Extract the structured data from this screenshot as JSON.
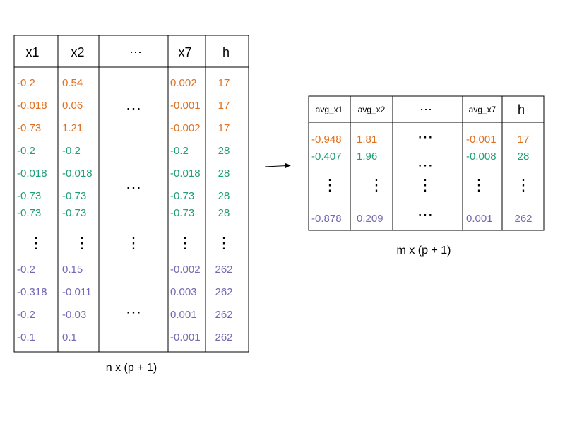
{
  "left_table": {
    "columns": [
      {
        "header": "x1",
        "cells": [
          "-0.2",
          "-0.018",
          "-0.73",
          "-0.2",
          "-0.018",
          "-0.73",
          "-0.73",
          "⋮",
          "-0.2",
          "-0.318",
          "-0.2",
          "-0.1"
        ]
      },
      {
        "header": "x2",
        "cells": [
          "0.54",
          "0.06",
          "1.21",
          "-0.2",
          "-0.018",
          "-0.73",
          "-0.73",
          "⋮",
          "0.15",
          "-0.011",
          "-0.03",
          "0.1"
        ]
      },
      {
        "header": "⋯",
        "cells": [
          "⋯",
          "⋯",
          "⋮",
          "⋯"
        ]
      },
      {
        "header": "x7",
        "cells": [
          "0.002",
          "-0.001",
          "-0.002",
          "-0.2",
          "-0.018",
          "-0.73",
          "-0.73",
          "⋮",
          "-0.002",
          "0.003",
          "0.001",
          "-0.001"
        ]
      },
      {
        "header": "h",
        "cells": [
          "17",
          "17",
          "17",
          "28",
          "28",
          "28",
          "28",
          "⋮",
          "262",
          "262",
          "262",
          "262"
        ]
      }
    ],
    "row_colors": [
      "#e07020",
      "#e07020",
      "#e07020",
      "#1f9e78",
      "#1f9e78",
      "#1f9e78",
      "#1f9e78",
      "#000000",
      "#7468b4",
      "#7468b4",
      "#7468b4",
      "#7468b4"
    ],
    "caption": "n x (p + 1)"
  },
  "right_table": {
    "columns": [
      {
        "header": "avg_x1",
        "cells": [
          "-0.948",
          "-0.407",
          "⋮",
          "-0.878"
        ]
      },
      {
        "header": "avg_x2",
        "cells": [
          "1.81",
          "1.96",
          "⋮",
          "0.209"
        ]
      },
      {
        "header": "⋯",
        "cells": [
          "⋯",
          "⋯",
          "⋮",
          "⋯"
        ]
      },
      {
        "header": "avg_x7",
        "cells": [
          "-0.001",
          "-0.008",
          "⋮",
          "0.001"
        ]
      },
      {
        "header": "h",
        "cells": [
          "17",
          "28",
          "⋮",
          "262"
        ]
      }
    ],
    "row_colors": [
      "#e07020",
      "#1f9e78",
      "#000000",
      "#7468b4"
    ],
    "caption": "m x (p + 1)"
  }
}
